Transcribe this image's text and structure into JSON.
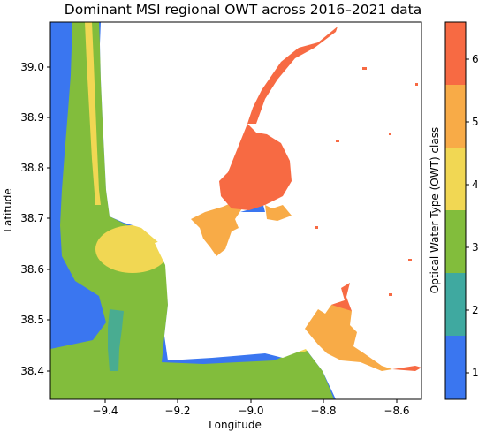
{
  "title": "Dominant MSI regional OWT across 2016–2021 data",
  "xlabel": "Longitude",
  "ylabel": "Latitude",
  "colorbar": {
    "label": "Optical Water Type (OWT) class",
    "ticks": [
      "1",
      "2",
      "3",
      "4",
      "5",
      "6"
    ],
    "classes": [
      {
        "cls": "1",
        "color": "#3a76f0"
      },
      {
        "cls": "2",
        "color": "#3fa9a0"
      },
      {
        "cls": "3",
        "color": "#82bd3c"
      },
      {
        "cls": "4",
        "color": "#f1d753"
      },
      {
        "cls": "5",
        "color": "#f8ab47"
      },
      {
        "cls": "6",
        "color": "#f76a43"
      }
    ]
  },
  "axes": {
    "xticks": [
      "−9.4",
      "−9.2",
      "−9.0",
      "−8.8",
      "−8.6"
    ],
    "yticks": [
      "39.0",
      "38.9",
      "38.8",
      "38.7",
      "38.6",
      "38.5",
      "38.4"
    ],
    "xlim": [
      -9.55,
      -8.53
    ],
    "ylim": [
      38.35,
      39.09
    ]
  }
}
